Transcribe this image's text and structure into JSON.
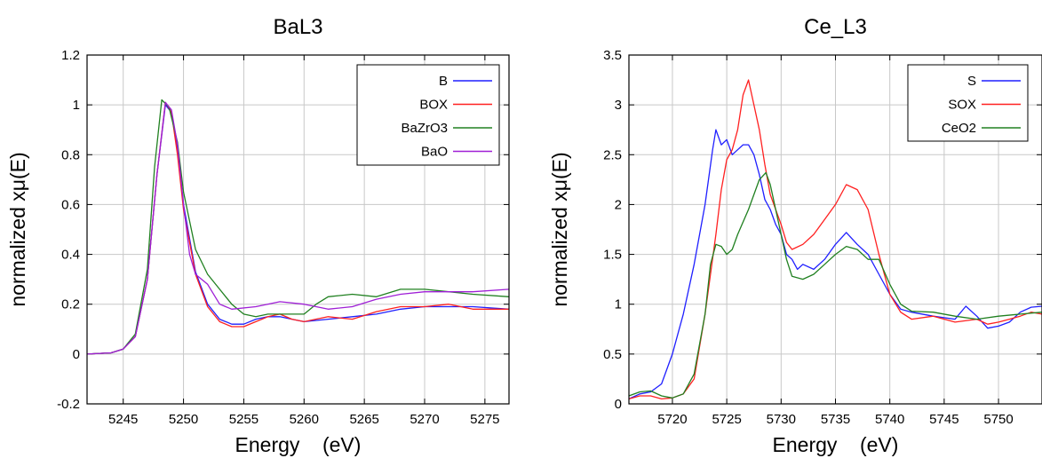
{
  "chart_data": [
    {
      "type": "line",
      "title": "BaL3",
      "xlabel": "Energy    (eV)",
      "ylabel": "normalized xμ(E)",
      "xlim": [
        5242,
        5277
      ],
      "ylim": [
        -0.2,
        1.2
      ],
      "x_ticks": [
        5245,
        5250,
        5255,
        5260,
        5265,
        5270,
        5275
      ],
      "y_ticks": [
        -0.2,
        0,
        0.2,
        0.4,
        0.6,
        0.8,
        1,
        1.2
      ],
      "y_tick_labels": [
        "-0.2",
        "0",
        "0.2",
        "0.4",
        "0.6",
        "0.8",
        "1",
        "1.2"
      ],
      "grid": true,
      "legend_position": "top-right",
      "series": [
        {
          "name": "B",
          "color": "#1f1fff",
          "points": [
            [
              5242,
              0
            ],
            [
              5244,
              0.005
            ],
            [
              5245,
              0.02
            ],
            [
              5246,
              0.07
            ],
            [
              5247,
              0.3
            ],
            [
              5247.8,
              0.72
            ],
            [
              5248.5,
              1.0
            ],
            [
              5249,
              0.97
            ],
            [
              5249.5,
              0.82
            ],
            [
              5250,
              0.6
            ],
            [
              5251,
              0.33
            ],
            [
              5252,
              0.2
            ],
            [
              5253,
              0.14
            ],
            [
              5254,
              0.12
            ],
            [
              5255,
              0.12
            ],
            [
              5256,
              0.14
            ],
            [
              5257,
              0.15
            ],
            [
              5258,
              0.15
            ],
            [
              5259,
              0.14
            ],
            [
              5260,
              0.13
            ],
            [
              5262,
              0.14
            ],
            [
              5264,
              0.15
            ],
            [
              5266,
              0.16
            ],
            [
              5268,
              0.18
            ],
            [
              5270,
              0.19
            ],
            [
              5272,
              0.19
            ],
            [
              5274,
              0.19
            ],
            [
              5277,
              0.18
            ]
          ]
        },
        {
          "name": "BOX",
          "color": "#ff2020",
          "points": [
            [
              5242,
              0
            ],
            [
              5244,
              0.005
            ],
            [
              5245,
              0.02
            ],
            [
              5246,
              0.07
            ],
            [
              5247,
              0.3
            ],
            [
              5247.8,
              0.72
            ],
            [
              5248.5,
              1.01
            ],
            [
              5249,
              0.97
            ],
            [
              5249.5,
              0.8
            ],
            [
              5250,
              0.58
            ],
            [
              5251,
              0.32
            ],
            [
              5252,
              0.19
            ],
            [
              5253,
              0.13
            ],
            [
              5254,
              0.11
            ],
            [
              5255,
              0.11
            ],
            [
              5256,
              0.13
            ],
            [
              5257,
              0.15
            ],
            [
              5258,
              0.16
            ],
            [
              5259,
              0.14
            ],
            [
              5260,
              0.13
            ],
            [
              5262,
              0.15
            ],
            [
              5264,
              0.14
            ],
            [
              5266,
              0.17
            ],
            [
              5268,
              0.19
            ],
            [
              5270,
              0.19
            ],
            [
              5272,
              0.2
            ],
            [
              5274,
              0.18
            ],
            [
              5277,
              0.18
            ]
          ]
        },
        {
          "name": "BaZrO3",
          "color": "#208020",
          "points": [
            [
              5242,
              0
            ],
            [
              5244,
              0.005
            ],
            [
              5245,
              0.02
            ],
            [
              5246,
              0.08
            ],
            [
              5247,
              0.34
            ],
            [
              5247.6,
              0.75
            ],
            [
              5248.2,
              1.02
            ],
            [
              5248.8,
              0.99
            ],
            [
              5249.5,
              0.85
            ],
            [
              5250,
              0.65
            ],
            [
              5251,
              0.42
            ],
            [
              5252,
              0.32
            ],
            [
              5253,
              0.26
            ],
            [
              5254,
              0.2
            ],
            [
              5255,
              0.16
            ],
            [
              5256,
              0.15
            ],
            [
              5257,
              0.16
            ],
            [
              5258,
              0.16
            ],
            [
              5259,
              0.16
            ],
            [
              5260,
              0.16
            ],
            [
              5261,
              0.2
            ],
            [
              5262,
              0.23
            ],
            [
              5264,
              0.24
            ],
            [
              5266,
              0.23
            ],
            [
              5268,
              0.26
            ],
            [
              5270,
              0.26
            ],
            [
              5272,
              0.25
            ],
            [
              5274,
              0.24
            ],
            [
              5277,
              0.23
            ]
          ]
        },
        {
          "name": "BaO",
          "color": "#9f1fd6",
          "points": [
            [
              5242,
              0
            ],
            [
              5244,
              0.005
            ],
            [
              5245,
              0.02
            ],
            [
              5246,
              0.07
            ],
            [
              5247,
              0.3
            ],
            [
              5247.8,
              0.72
            ],
            [
              5248.5,
              1.01
            ],
            [
              5249,
              0.98
            ],
            [
              5249.5,
              0.84
            ],
            [
              5250,
              0.6
            ],
            [
              5250.5,
              0.4
            ],
            [
              5251,
              0.32
            ],
            [
              5252,
              0.28
            ],
            [
              5253,
              0.2
            ],
            [
              5254,
              0.18
            ],
            [
              5256,
              0.19
            ],
            [
              5258,
              0.21
            ],
            [
              5260,
              0.2
            ],
            [
              5262,
              0.18
            ],
            [
              5264,
              0.19
            ],
            [
              5266,
              0.22
            ],
            [
              5268,
              0.24
            ],
            [
              5270,
              0.25
            ],
            [
              5272,
              0.25
            ],
            [
              5274,
              0.25
            ],
            [
              5277,
              0.26
            ]
          ]
        }
      ]
    },
    {
      "type": "line",
      "title": "Ce_L3",
      "xlabel": "Energy    (eV)",
      "ylabel": "normalized xμ(E)",
      "xlim": [
        5716,
        5754
      ],
      "ylim": [
        0,
        3.5
      ],
      "x_ticks": [
        5720,
        5725,
        5730,
        5735,
        5740,
        5745,
        5750
      ],
      "y_ticks": [
        0,
        0.5,
        1,
        1.5,
        2,
        2.5,
        3,
        3.5
      ],
      "y_tick_labels": [
        "0",
        "0.5",
        "1",
        "1.5",
        "2",
        "2.5",
        "3",
        "3.5"
      ],
      "grid": true,
      "legend_position": "top-right",
      "series": [
        {
          "name": "S",
          "color": "#1f1fff",
          "points": [
            [
              5716,
              0.05
            ],
            [
              5717,
              0.1
            ],
            [
              5718,
              0.12
            ],
            [
              5719,
              0.2
            ],
            [
              5720,
              0.5
            ],
            [
              5721,
              0.9
            ],
            [
              5722,
              1.4
            ],
            [
              5723,
              2.0
            ],
            [
              5723.7,
              2.55
            ],
            [
              5724,
              2.75
            ],
            [
              5724.5,
              2.6
            ],
            [
              5725,
              2.65
            ],
            [
              5725.5,
              2.5
            ],
            [
              5726,
              2.55
            ],
            [
              5726.5,
              2.6
            ],
            [
              5727,
              2.6
            ],
            [
              5727.5,
              2.5
            ],
            [
              5728,
              2.3
            ],
            [
              5728.5,
              2.05
            ],
            [
              5729,
              1.95
            ],
            [
              5729.5,
              1.8
            ],
            [
              5730,
              1.7
            ],
            [
              5730.5,
              1.5
            ],
            [
              5731,
              1.45
            ],
            [
              5731.5,
              1.35
            ],
            [
              5732,
              1.4
            ],
            [
              5733,
              1.35
            ],
            [
              5734,
              1.45
            ],
            [
              5735,
              1.6
            ],
            [
              5736,
              1.72
            ],
            [
              5737,
              1.6
            ],
            [
              5738,
              1.5
            ],
            [
              5739,
              1.3
            ],
            [
              5740,
              1.1
            ],
            [
              5741,
              0.95
            ],
            [
              5742,
              0.92
            ],
            [
              5744,
              0.88
            ],
            [
              5746,
              0.85
            ],
            [
              5747,
              0.98
            ],
            [
              5748,
              0.88
            ],
            [
              5749,
              0.76
            ],
            [
              5750,
              0.78
            ],
            [
              5751,
              0.82
            ],
            [
              5752,
              0.92
            ],
            [
              5753,
              0.97
            ],
            [
              5754,
              0.98
            ]
          ]
        },
        {
          "name": "SOX",
          "color": "#ff2020",
          "points": [
            [
              5716,
              0.05
            ],
            [
              5717,
              0.08
            ],
            [
              5718,
              0.08
            ],
            [
              5719,
              0.05
            ],
            [
              5720,
              0.06
            ],
            [
              5721,
              0.1
            ],
            [
              5722,
              0.25
            ],
            [
              5723,
              0.9
            ],
            [
              5724,
              1.7
            ],
            [
              5724.5,
              2.15
            ],
            [
              5725,
              2.45
            ],
            [
              5725.5,
              2.55
            ],
            [
              5726,
              2.75
            ],
            [
              5726.5,
              3.1
            ],
            [
              5727,
              3.25
            ],
            [
              5727.5,
              3.0
            ],
            [
              5728,
              2.75
            ],
            [
              5728.5,
              2.4
            ],
            [
              5729,
              2.1
            ],
            [
              5730,
              1.8
            ],
            [
              5730.5,
              1.62
            ],
            [
              5731,
              1.55
            ],
            [
              5732,
              1.6
            ],
            [
              5733,
              1.7
            ],
            [
              5734,
              1.85
            ],
            [
              5735,
              2.0
            ],
            [
              5736,
              2.2
            ],
            [
              5737,
              2.15
            ],
            [
              5738,
              1.95
            ],
            [
              5739,
              1.5
            ],
            [
              5740,
              1.1
            ],
            [
              5741,
              0.92
            ],
            [
              5742,
              0.85
            ],
            [
              5744,
              0.88
            ],
            [
              5746,
              0.82
            ],
            [
              5748,
              0.85
            ],
            [
              5749,
              0.8
            ],
            [
              5750,
              0.82
            ],
            [
              5751,
              0.85
            ],
            [
              5752,
              0.88
            ],
            [
              5753,
              0.92
            ],
            [
              5754,
              0.9
            ]
          ]
        },
        {
          "name": "CeO2",
          "color": "#208020",
          "points": [
            [
              5716,
              0.08
            ],
            [
              5717,
              0.12
            ],
            [
              5718,
              0.13
            ],
            [
              5719,
              0.08
            ],
            [
              5720,
              0.06
            ],
            [
              5721,
              0.1
            ],
            [
              5722,
              0.3
            ],
            [
              5723,
              0.9
            ],
            [
              5723.5,
              1.4
            ],
            [
              5724,
              1.6
            ],
            [
              5724.5,
              1.58
            ],
            [
              5725,
              1.5
            ],
            [
              5725.5,
              1.55
            ],
            [
              5726,
              1.7
            ],
            [
              5727,
              1.95
            ],
            [
              5728,
              2.25
            ],
            [
              5728.6,
              2.32
            ],
            [
              5729,
              2.2
            ],
            [
              5729.5,
              1.95
            ],
            [
              5730,
              1.7
            ],
            [
              5730.5,
              1.45
            ],
            [
              5731,
              1.28
            ],
            [
              5732,
              1.25
            ],
            [
              5733,
              1.3
            ],
            [
              5734,
              1.4
            ],
            [
              5735,
              1.5
            ],
            [
              5736,
              1.58
            ],
            [
              5737,
              1.55
            ],
            [
              5738,
              1.45
            ],
            [
              5739,
              1.45
            ],
            [
              5740,
              1.2
            ],
            [
              5741,
              1.0
            ],
            [
              5742,
              0.93
            ],
            [
              5744,
              0.92
            ],
            [
              5746,
              0.88
            ],
            [
              5748,
              0.85
            ],
            [
              5750,
              0.88
            ],
            [
              5752,
              0.9
            ],
            [
              5754,
              0.92
            ]
          ]
        }
      ]
    }
  ]
}
